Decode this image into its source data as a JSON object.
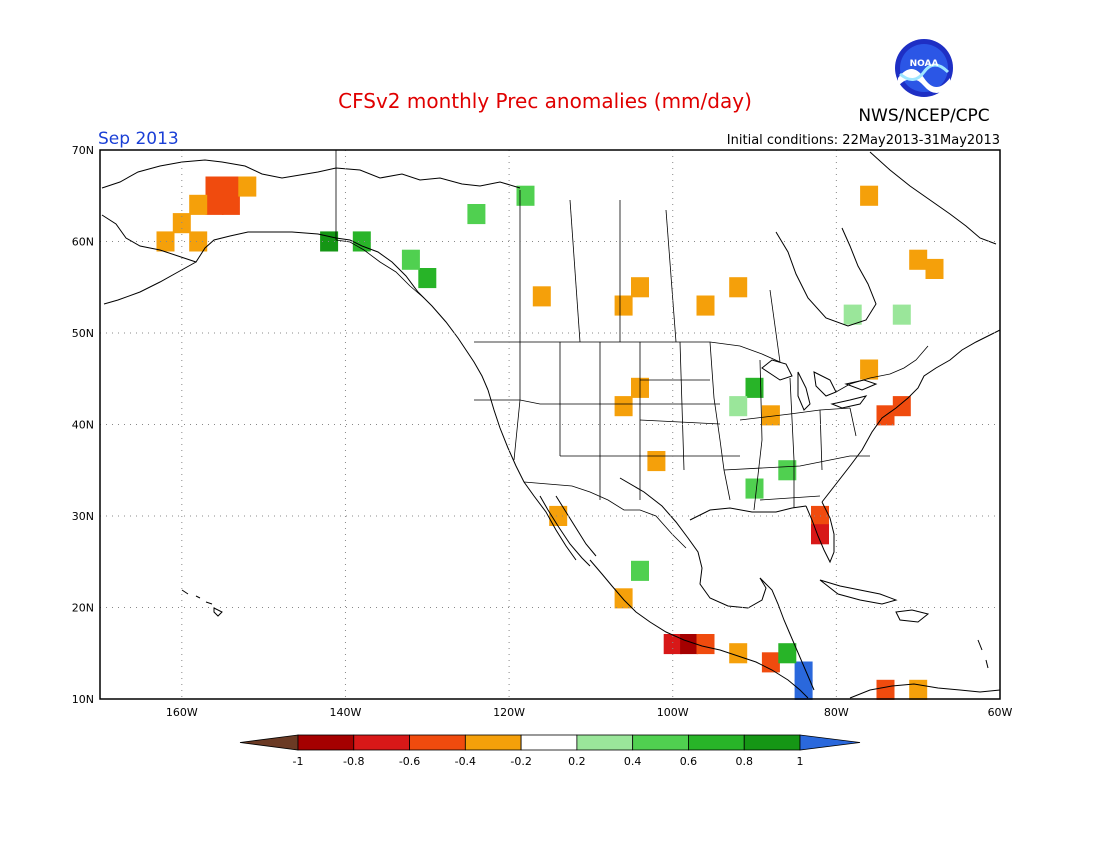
{
  "header": {
    "title": "CFSv2 monthly Prec anomalies (mm/day)",
    "month": "Sep 2013",
    "initial_conditions": "Initial conditions: 22May2013-31May2013",
    "agency": "NWS/NCEP/CPC",
    "logo_text": "NOAA"
  },
  "colors": {
    "title": "#e00000",
    "month": "#1a3fd6",
    "bins": [
      "#6b3a24",
      "#a50000",
      "#d81818",
      "#f04b0e",
      "#f5a00a",
      "#ffffff",
      "#9ae69a",
      "#50d050",
      "#28b428",
      "#159615",
      "#2a68dc"
    ]
  },
  "map": {
    "lat_labels": [
      "70N",
      "60N",
      "50N",
      "40N",
      "30N",
      "20N",
      "10N"
    ],
    "lon_labels": [
      "160W",
      "140W",
      "120W",
      "100W",
      "80W",
      "60W"
    ],
    "lat_values": [
      70,
      60,
      50,
      40,
      30,
      20,
      10
    ],
    "lon_values": [
      -160,
      -140,
      -120,
      -100,
      -80,
      -60
    ],
    "lon_range": [
      -170,
      -60
    ],
    "lat_range": [
      10,
      70
    ]
  },
  "colorbar": {
    "ticks": [
      "-1",
      "-0.8",
      "-0.6",
      "-0.4",
      "-0.2",
      "0.2",
      "0.4",
      "0.6",
      "0.8",
      "1"
    ],
    "bin_edges": [
      -1,
      -0.8,
      -0.6,
      -0.4,
      -0.2,
      0.2,
      0.4,
      0.6,
      0.8,
      1
    ]
  },
  "anomaly_cells": [
    {
      "lon": -156,
      "lat": 66,
      "value": -0.6
    },
    {
      "lon": -154,
      "lat": 66,
      "value": -0.6
    },
    {
      "lon": -156,
      "lat": 64,
      "value": -0.6
    },
    {
      "lon": -154,
      "lat": 64,
      "value": -0.5
    },
    {
      "lon": -158,
      "lat": 64,
      "value": -0.4
    },
    {
      "lon": -160,
      "lat": 62,
      "value": -0.3
    },
    {
      "lon": -152,
      "lat": 66,
      "value": -0.3
    },
    {
      "lon": -162,
      "lat": 60,
      "value": -0.3
    },
    {
      "lon": -158,
      "lat": 60,
      "value": -0.3
    },
    {
      "lon": -130,
      "lat": 56,
      "value": 0.7
    },
    {
      "lon": -132,
      "lat": 58,
      "value": 0.5
    },
    {
      "lon": -138,
      "lat": 60,
      "value": 0.6
    },
    {
      "lon": -142,
      "lat": 60,
      "value": 0.9
    },
    {
      "lon": -124,
      "lat": 63,
      "value": 0.4
    },
    {
      "lon": -118,
      "lat": 65,
      "value": 0.4
    },
    {
      "lon": -106,
      "lat": 53,
      "value": -0.3
    },
    {
      "lon": -104,
      "lat": 55,
      "value": -0.3
    },
    {
      "lon": -116,
      "lat": 54,
      "value": -0.3
    },
    {
      "lon": -92,
      "lat": 55,
      "value": -0.3
    },
    {
      "lon": -96,
      "lat": 53,
      "value": -0.3
    },
    {
      "lon": -90,
      "lat": 44,
      "value": 0.6
    },
    {
      "lon": -92,
      "lat": 42,
      "value": 0.3
    },
    {
      "lon": -88,
      "lat": 41,
      "value": -0.3
    },
    {
      "lon": -76,
      "lat": 46,
      "value": -0.3
    },
    {
      "lon": -74,
      "lat": 41,
      "value": -0.6
    },
    {
      "lon": -72,
      "lat": 42,
      "value": -0.5
    },
    {
      "lon": -86,
      "lat": 35,
      "value": 0.4
    },
    {
      "lon": -90,
      "lat": 33,
      "value": 0.5
    },
    {
      "lon": -82,
      "lat": 30,
      "value": -0.5
    },
    {
      "lon": -82,
      "lat": 28,
      "value": -0.8
    },
    {
      "lon": -106,
      "lat": 42,
      "value": -0.3
    },
    {
      "lon": -104,
      "lat": 44,
      "value": -0.3
    },
    {
      "lon": -102,
      "lat": 36,
      "value": -0.3
    },
    {
      "lon": -100,
      "lat": 16,
      "value": -0.8
    },
    {
      "lon": -98,
      "lat": 16,
      "value": -0.9
    },
    {
      "lon": -96,
      "lat": 16,
      "value": -0.6
    },
    {
      "lon": -92,
      "lat": 15,
      "value": -0.4
    },
    {
      "lon": -88,
      "lat": 14,
      "value": -0.6
    },
    {
      "lon": -84,
      "lat": 13,
      "value": 1.0
    },
    {
      "lon": -84,
      "lat": 11,
      "value": 1.0
    },
    {
      "lon": -86,
      "lat": 15,
      "value": 0.6
    },
    {
      "lon": -74,
      "lat": 11,
      "value": -0.6
    },
    {
      "lon": -70,
      "lat": 11,
      "value": -0.4
    },
    {
      "lon": -76,
      "lat": 65,
      "value": -0.3
    },
    {
      "lon": -70,
      "lat": 58,
      "value": -0.3
    },
    {
      "lon": -68,
      "lat": 57,
      "value": -0.3
    },
    {
      "lon": -78,
      "lat": 52,
      "value": 0.3
    },
    {
      "lon": -72,
      "lat": 52,
      "value": 0.3
    },
    {
      "lon": -106,
      "lat": 21,
      "value": -0.3
    },
    {
      "lon": -104,
      "lat": 24,
      "value": 0.4
    },
    {
      "lon": -114,
      "lat": 30,
      "value": -0.3
    }
  ]
}
